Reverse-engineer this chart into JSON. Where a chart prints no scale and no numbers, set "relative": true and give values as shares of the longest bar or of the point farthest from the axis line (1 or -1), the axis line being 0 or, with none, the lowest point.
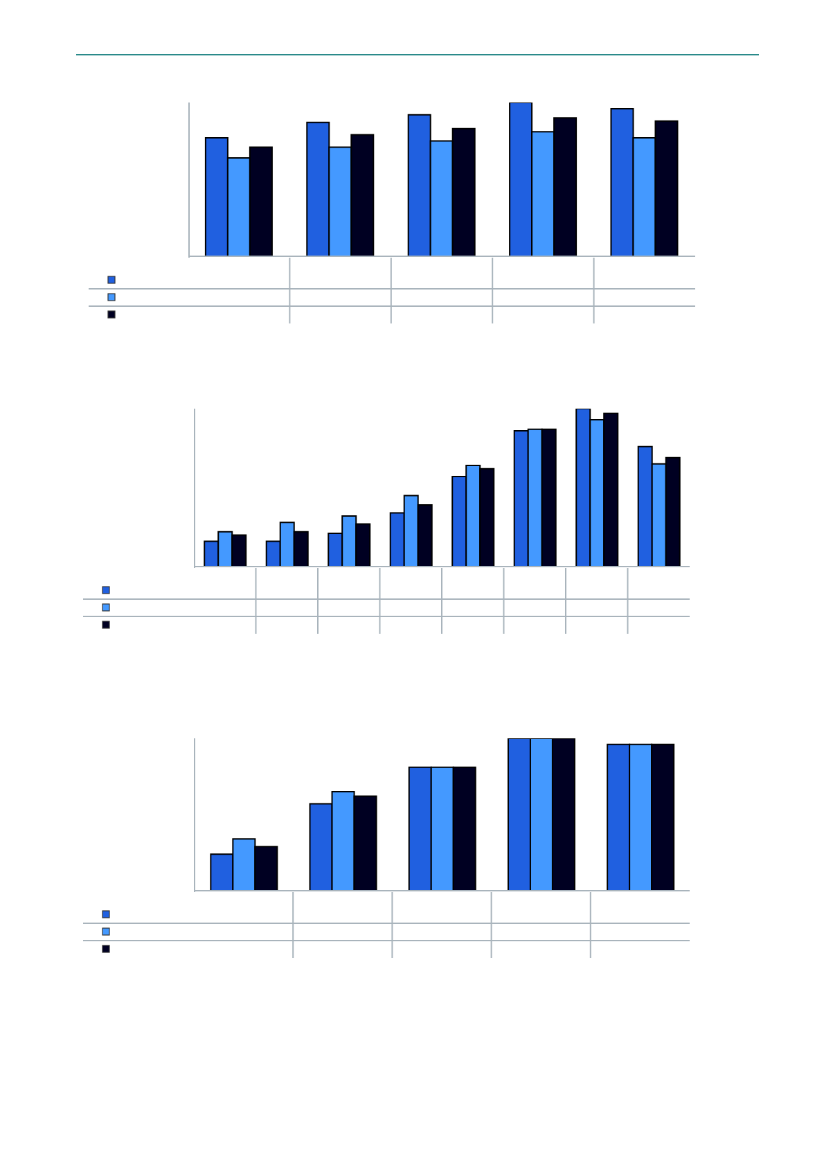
{
  "chart_data": [
    {
      "type": "bar",
      "relative": true,
      "legend": false,
      "categories": [
        null,
        null,
        null,
        null,
        null
      ],
      "series": [
        {
          "color": "#2060e0",
          "values": [
            0.77,
            0.87,
            0.92,
            1,
            0.96
          ]
        },
        {
          "color": "#4499ff",
          "values": [
            0.64,
            0.71,
            0.75,
            0.81,
            0.77
          ]
        },
        {
          "color": "#000022",
          "values": [
            0.71,
            0.79,
            0.83,
            0.9,
            0.88
          ]
        }
      ]
    },
    {
      "type": "bar",
      "relative": true,
      "legend": false,
      "categories": [
        null,
        null,
        null,
        null,
        null,
        null,
        null,
        null
      ],
      "series": [
        {
          "color": "#2060e0",
          "values": [
            0.16,
            0.16,
            0.21,
            0.34,
            0.57,
            0.86,
            1,
            0.76
          ]
        },
        {
          "color": "#4499ff",
          "values": [
            0.22,
            0.28,
            0.32,
            0.45,
            0.64,
            0.87,
            0.93,
            0.65
          ]
        },
        {
          "color": "#000022",
          "values": [
            0.2,
            0.22,
            0.27,
            0.39,
            0.62,
            0.87,
            0.97,
            0.69
          ]
        }
      ]
    },
    {
      "type": "bar",
      "relative": true,
      "legend": false,
      "categories": [
        null,
        null,
        null,
        null,
        null
      ],
      "series": [
        {
          "color": "#2060e0",
          "values": [
            0.24,
            0.57,
            0.81,
            1,
            0.96
          ]
        },
        {
          "color": "#4499ff",
          "values": [
            0.34,
            0.65,
            0.81,
            1,
            0.96
          ]
        },
        {
          "color": "#000022",
          "values": [
            0.29,
            0.62,
            0.81,
            1,
            0.96
          ]
        }
      ]
    }
  ]
}
